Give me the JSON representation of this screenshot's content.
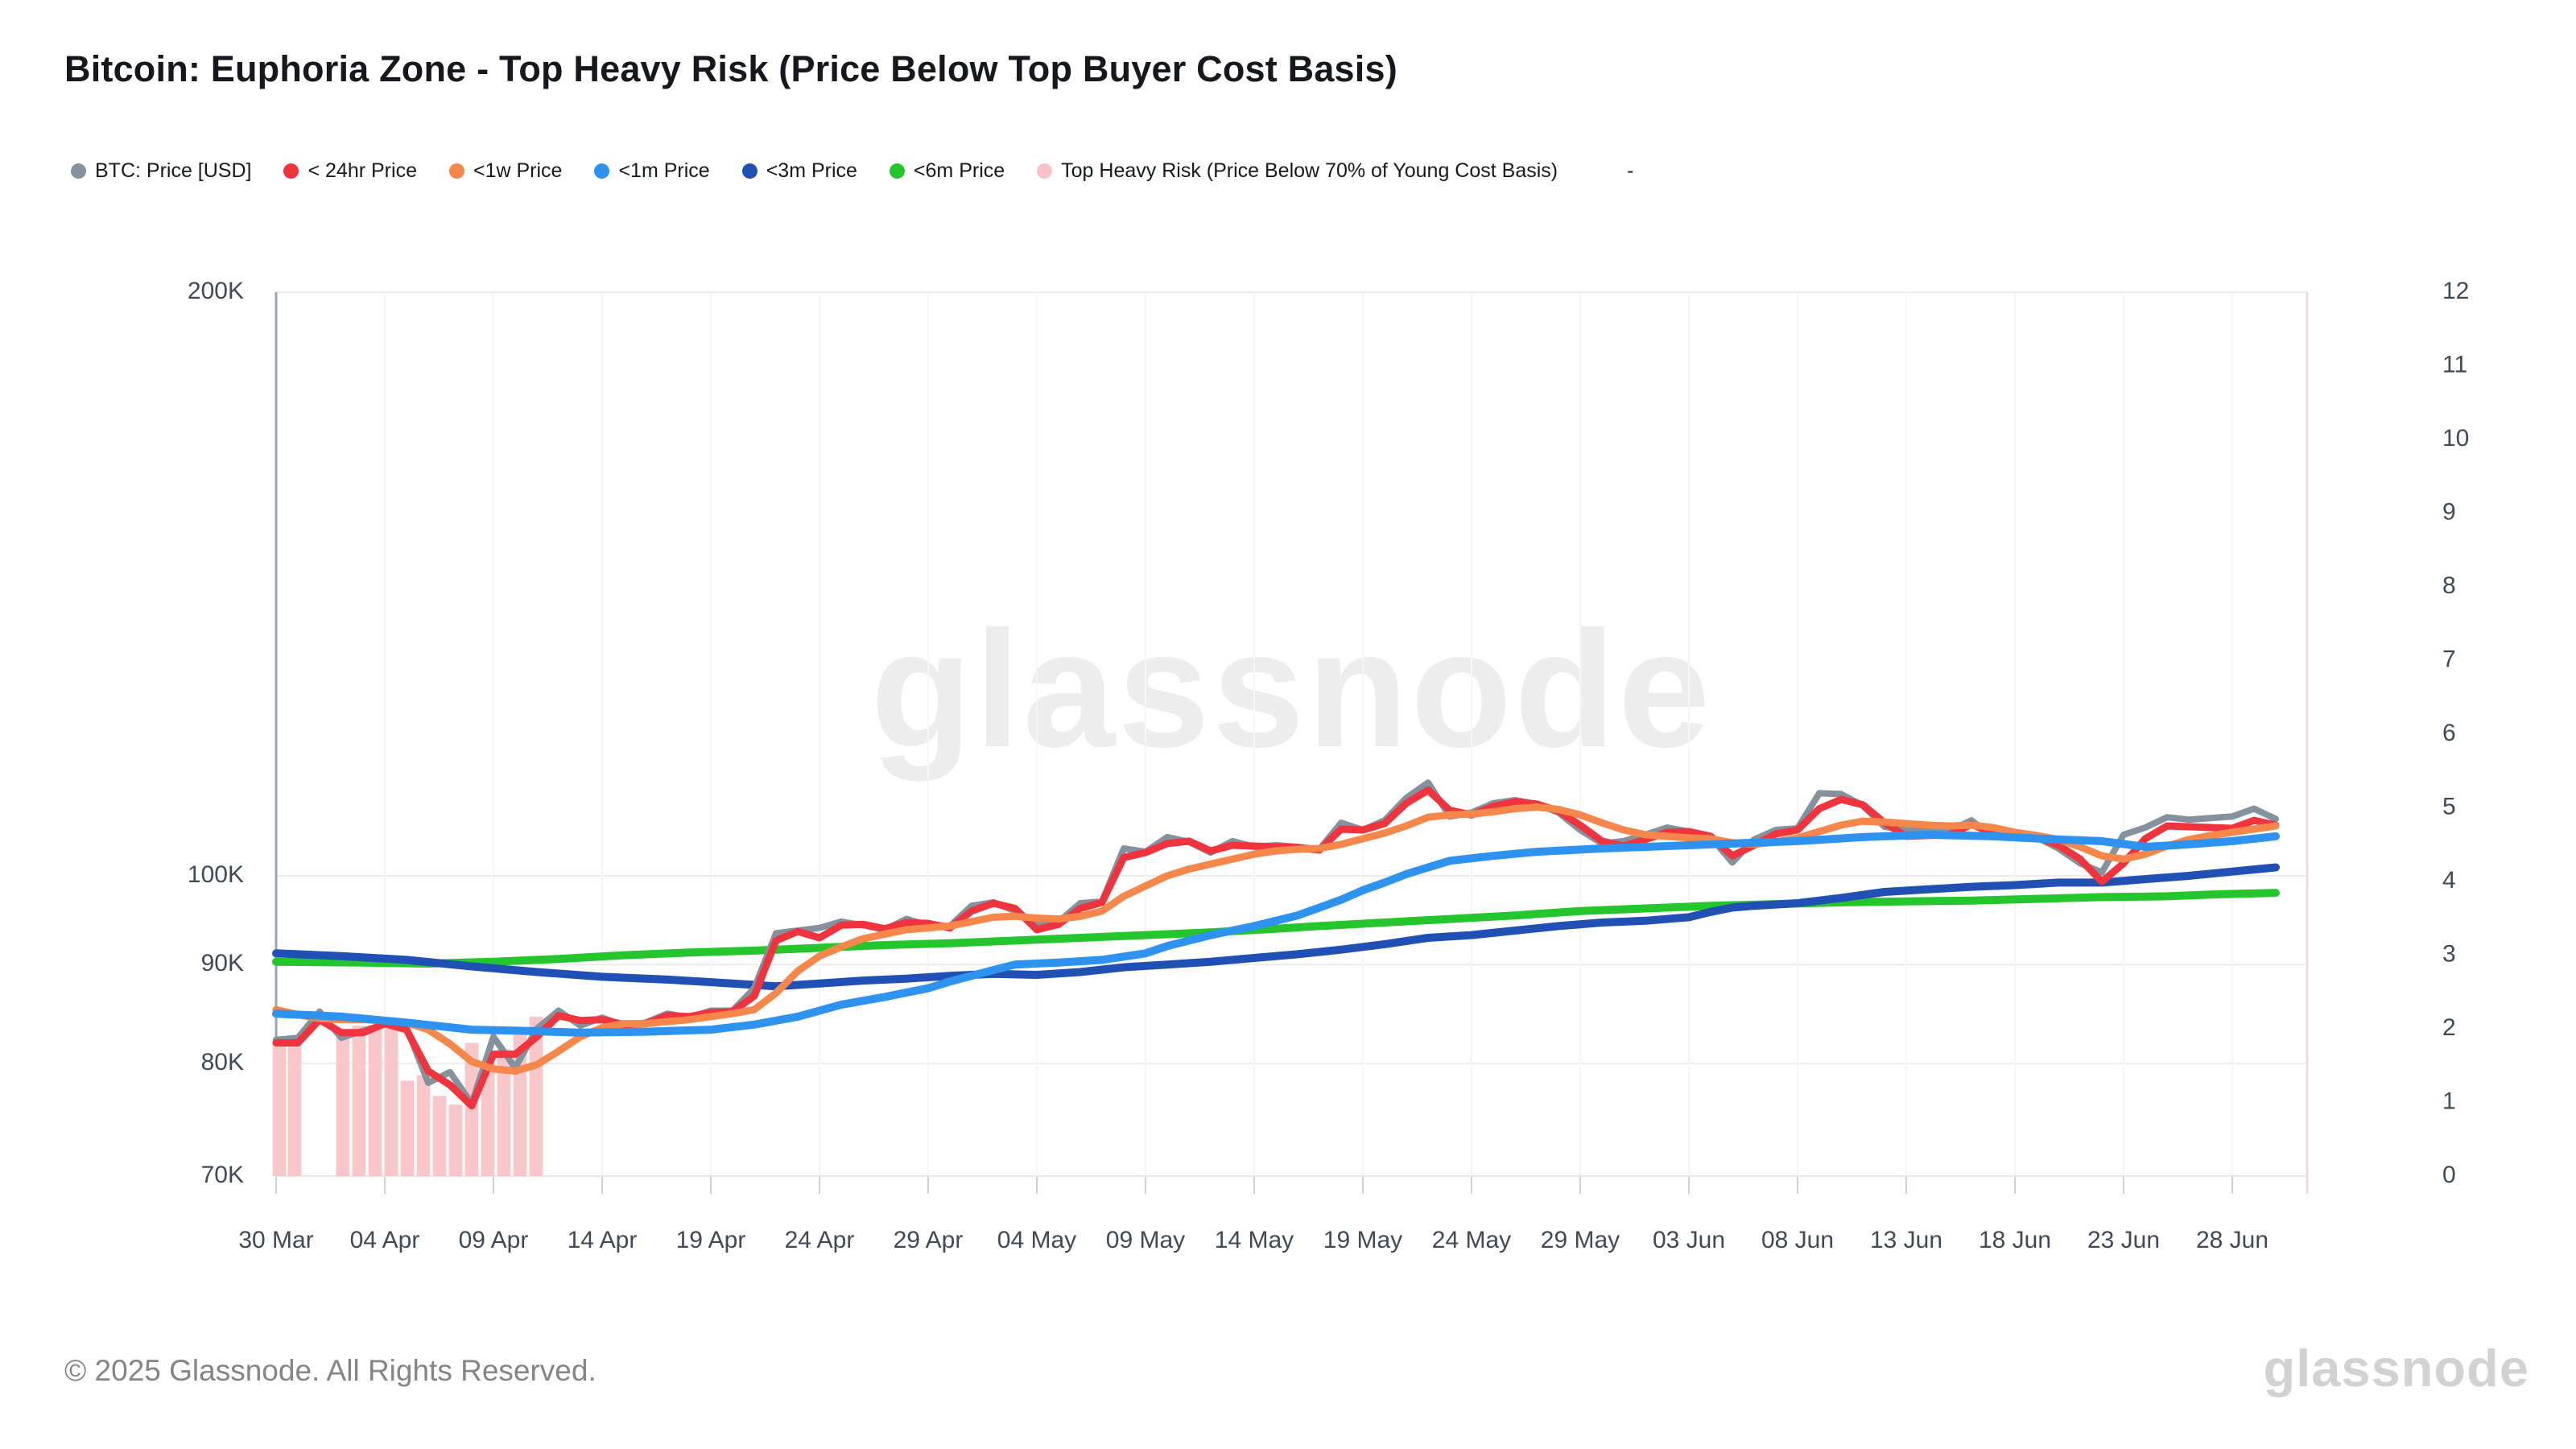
{
  "header": {
    "title": "Bitcoin: Euphoria Zone - Top Heavy Risk (Price Below Top Buyer Cost Basis)"
  },
  "watermark_text": "glassnode",
  "footer": {
    "copyright": "© 2025 Glassnode. All Rights Reserved.",
    "brand": "glassnode"
  },
  "legend": {
    "items": [
      {
        "id": "btc-price-usd",
        "label": "BTC: Price [USD]",
        "color": "#84929e"
      },
      {
        "id": "24hr-price",
        "label": "< 24hr Price",
        "color": "#ef343e"
      },
      {
        "id": "1w-price",
        "label": "<1w Price",
        "color": "#f6874a"
      },
      {
        "id": "1m-price",
        "label": "<1m Price",
        "color": "#2d93ee"
      },
      {
        "id": "3m-price",
        "label": "<3m Price",
        "color": "#2050b3"
      },
      {
        "id": "6m-price",
        "label": "<6m Price",
        "color": "#25c52e"
      },
      {
        "id": "top-heavy-risk",
        "label": "Top Heavy Risk (Price Below 70% of Young Cost Basis)",
        "color": "#f8c3c7"
      }
    ],
    "extra": "-"
  },
  "chart_data": {
    "type": "line",
    "title": "Bitcoin: Euphoria Zone - Top Heavy Risk (Price Below Top Buyer Cost Basis)",
    "x_unit": "days since 30 Mar 2025",
    "x_tick_days": [
      0,
      5,
      10,
      15,
      20,
      25,
      30,
      35,
      40,
      45,
      50,
      55,
      60,
      65,
      70,
      75,
      80,
      85,
      90
    ],
    "x_tick_labels": [
      "30 Mar",
      "04 Apr",
      "09 Apr",
      "14 Apr",
      "19 Apr",
      "24 Apr",
      "29 Apr",
      "04 May",
      "09 May",
      "14 May",
      "19 May",
      "24 May",
      "29 May",
      "03 Jun",
      "08 Jun",
      "13 Jun",
      "18 Jun",
      "23 Jun",
      "28 Jun"
    ],
    "y_left": {
      "scale": "log",
      "unit": "USD (thousands)",
      "domain": [
        70,
        200
      ],
      "ticks": [
        {
          "label": "200K",
          "value": 200
        },
        {
          "label": "100K",
          "value": 100
        },
        {
          "label": "90K",
          "value": 90
        },
        {
          "label": "80K",
          "value": 80
        },
        {
          "label": "70K",
          "value": 70
        }
      ]
    },
    "y_right": {
      "scale": "linear",
      "domain": [
        0,
        12
      ],
      "ticks": [
        {
          "label": "12",
          "value": 12
        },
        {
          "label": "11",
          "value": 11
        },
        {
          "label": "10",
          "value": 10
        },
        {
          "label": "9",
          "value": 9
        },
        {
          "label": "8",
          "value": 8
        },
        {
          "label": "7",
          "value": 7
        },
        {
          "label": "6",
          "value": 6
        },
        {
          "label": "5",
          "value": 5
        },
        {
          "label": "4",
          "value": 4
        },
        {
          "label": "3",
          "value": 3
        },
        {
          "label": "2",
          "value": 2
        },
        {
          "label": "1",
          "value": 1
        },
        {
          "label": "0",
          "value": 0
        }
      ]
    },
    "grid": {
      "horizontal": true,
      "vertical": true
    },
    "bars": {
      "name": "Top Heavy Risk (Price Below 70% of Young Cost Basis)",
      "color": "#f9c6c9",
      "width_days": 0.62,
      "note": "vertical bands from chart floor up to the BTC price level on flagged days",
      "points": [
        [
          0.15,
          82.3
        ],
        [
          0.85,
          82.4
        ],
        [
          3.07,
          83.2
        ],
        [
          3.81,
          83.7
        ],
        [
          4.56,
          83.6
        ],
        [
          5.3,
          83.4
        ],
        [
          6.04,
          78.4
        ],
        [
          6.78,
          78.9
        ],
        [
          7.52,
          77.0
        ],
        [
          8.26,
          76.2
        ],
        [
          9.0,
          82.0
        ],
        [
          9.74,
          80.2
        ],
        [
          10.48,
          81.4
        ],
        [
          11.22,
          83.4
        ],
        [
          11.96,
          84.6
        ]
      ]
    },
    "series": [
      {
        "name": "BTC: Price [USD]",
        "color": "#84929e",
        "width": 8,
        "z": 3,
        "start_day": 0,
        "step": 1,
        "values": [
          82.3,
          82.5,
          85.1,
          82.5,
          83.2,
          83.8,
          83.5,
          78.2,
          79.2,
          76.3,
          82.6,
          79.6,
          83.4,
          85.2,
          83.7,
          84.5,
          83.7,
          84.0,
          84.9,
          84.5,
          85.2,
          85.2,
          87.5,
          93.4,
          93.7,
          94.0,
          94.7,
          94.3,
          93.8,
          95.0,
          94.3,
          94.2,
          96.5,
          96.9,
          95.9,
          94.3,
          94.7,
          96.8,
          97.0,
          103.3,
          102.9,
          104.7,
          104.1,
          102.8,
          104.2,
          103.5,
          103.7,
          103.5,
          103.2,
          106.5,
          105.6,
          106.8,
          109.7,
          111.7,
          107.3,
          107.8,
          109.0,
          109.4,
          108.9,
          107.8,
          105.6,
          103.9,
          104.2,
          105.0,
          105.9,
          105.4,
          104.7,
          101.6,
          104.4,
          105.6,
          105.8,
          110.3,
          110.2,
          108.7,
          106.0,
          105.6,
          105.5,
          105.5,
          106.8,
          104.7,
          104.9,
          104.7,
          103.3,
          101.5,
          100.4,
          105.0,
          105.9,
          107.2,
          106.9,
          107.1,
          107.3,
          108.3,
          107.0
        ]
      },
      {
        "name": "< 24hr Price",
        "color": "#ef343e",
        "width": 9,
        "z": 4,
        "start_day": 0,
        "step": 1,
        "values": [
          82.0,
          82.0,
          84.3,
          83.0,
          83.0,
          83.9,
          83.3,
          79.3,
          78.0,
          76.1,
          80.9,
          80.9,
          82.6,
          84.7,
          84.2,
          84.3,
          83.8,
          83.9,
          84.7,
          84.6,
          85.0,
          85.1,
          86.7,
          92.6,
          93.6,
          92.9,
          94.3,
          94.4,
          93.9,
          94.6,
          94.5,
          94.0,
          95.9,
          96.8,
          96.2,
          93.8,
          94.4,
          96.2,
          96.9,
          102.2,
          102.8,
          103.9,
          104.2,
          103.0,
          103.7,
          103.6,
          103.5,
          103.4,
          103.1,
          105.7,
          105.6,
          106.4,
          109.0,
          110.7,
          108.1,
          107.5,
          108.6,
          109.2,
          108.9,
          108.0,
          106.2,
          104.2,
          103.6,
          104.4,
          105.3,
          105.4,
          104.8,
          102.4,
          103.7,
          105.1,
          105.6,
          108.3,
          109.5,
          108.8,
          106.5,
          104.8,
          104.9,
          105.0,
          106.3,
          105.2,
          104.8,
          104.7,
          103.7,
          102.0,
          99.3,
          101.5,
          104.5,
          106.1,
          106.0,
          105.9,
          105.8,
          106.8,
          106.2
        ]
      },
      {
        "name": "<1w Price",
        "color": "#f6874a",
        "width": 9,
        "z": 5,
        "start_day": 0,
        "step": 1,
        "values": [
          85.3,
          84.8,
          84.4,
          84.3,
          84.3,
          84.2,
          84.0,
          83.3,
          81.9,
          80.2,
          79.5,
          79.3,
          79.9,
          81.2,
          82.6,
          83.5,
          83.9,
          83.9,
          84.1,
          84.3,
          84.6,
          84.9,
          85.3,
          87.0,
          89.3,
          90.9,
          91.9,
          92.8,
          93.3,
          93.8,
          94.0,
          94.2,
          94.7,
          95.2,
          95.3,
          95.1,
          95.0,
          95.3,
          95.9,
          97.6,
          98.8,
          100.0,
          100.8,
          101.4,
          102.0,
          102.6,
          103.0,
          103.2,
          103.3,
          103.8,
          104.5,
          105.2,
          106.1,
          107.2,
          107.5,
          107.6,
          107.9,
          108.3,
          108.5,
          108.2,
          107.5,
          106.5,
          105.6,
          105.0,
          104.8,
          104.6,
          104.5,
          104.0,
          103.8,
          104.1,
          104.6,
          105.4,
          106.2,
          106.7,
          106.6,
          106.4,
          106.2,
          106.1,
          106.2,
          105.9,
          105.3,
          104.9,
          104.4,
          103.5,
          102.4,
          102.0,
          102.6,
          103.6,
          104.4,
          104.9,
          105.3,
          105.7,
          106.1
        ]
      },
      {
        "name": "<1m Price",
        "color": "#2d93ee",
        "width": 10,
        "z": 6,
        "points": [
          [
            0,
            84.9
          ],
          [
            3,
            84.6
          ],
          [
            6,
            84.0
          ],
          [
            9,
            83.3
          ],
          [
            11,
            83.2
          ],
          [
            14,
            83.0
          ],
          [
            17,
            83.1
          ],
          [
            20,
            83.3
          ],
          [
            22,
            83.8
          ],
          [
            24,
            84.6
          ],
          [
            26,
            85.8
          ],
          [
            28,
            86.6
          ],
          [
            30,
            87.5
          ],
          [
            31,
            88.2
          ],
          [
            32,
            88.8
          ],
          [
            33,
            89.4
          ],
          [
            34,
            90.0
          ],
          [
            36,
            90.2
          ],
          [
            38,
            90.5
          ],
          [
            40,
            91.2
          ],
          [
            41,
            92.0
          ],
          [
            43,
            93.2
          ],
          [
            45,
            94.2
          ],
          [
            47,
            95.4
          ],
          [
            49,
            97.2
          ],
          [
            50,
            98.3
          ],
          [
            51,
            99.2
          ],
          [
            52,
            100.2
          ],
          [
            53,
            101.0
          ],
          [
            54,
            101.8
          ],
          [
            56,
            102.4
          ],
          [
            58,
            102.9
          ],
          [
            61,
            103.3
          ],
          [
            64,
            103.6
          ],
          [
            67,
            103.9
          ],
          [
            70,
            104.2
          ],
          [
            73,
            104.7
          ],
          [
            76,
            105.0
          ],
          [
            79,
            104.8
          ],
          [
            82,
            104.4
          ],
          [
            84,
            104.2
          ],
          [
            86,
            103.5
          ],
          [
            88,
            103.8
          ],
          [
            90,
            104.2
          ],
          [
            92,
            104.8
          ]
        ]
      },
      {
        "name": "<3m Price",
        "color": "#2050b3",
        "width": 10,
        "z": 2,
        "points": [
          [
            0,
            91.2
          ],
          [
            3,
            90.9
          ],
          [
            6,
            90.5
          ],
          [
            9,
            89.8
          ],
          [
            12,
            89.2
          ],
          [
            15,
            88.7
          ],
          [
            18,
            88.4
          ],
          [
            21,
            88.0
          ],
          [
            23,
            87.7
          ],
          [
            25,
            88.0
          ],
          [
            27,
            88.3
          ],
          [
            29,
            88.5
          ],
          [
            31,
            88.8
          ],
          [
            33,
            89.0
          ],
          [
            35,
            88.9
          ],
          [
            37,
            89.2
          ],
          [
            39,
            89.7
          ],
          [
            41,
            90.0
          ],
          [
            43,
            90.3
          ],
          [
            45,
            90.7
          ],
          [
            47,
            91.1
          ],
          [
            49,
            91.6
          ],
          [
            51,
            92.2
          ],
          [
            53,
            92.9
          ],
          [
            55,
            93.2
          ],
          [
            57,
            93.7
          ],
          [
            59,
            94.2
          ],
          [
            61,
            94.6
          ],
          [
            63,
            94.8
          ],
          [
            65,
            95.2
          ],
          [
            66,
            95.8
          ],
          [
            67,
            96.3
          ],
          [
            68,
            96.5
          ],
          [
            70,
            96.8
          ],
          [
            72,
            97.4
          ],
          [
            74,
            98.1
          ],
          [
            76,
            98.4
          ],
          [
            78,
            98.7
          ],
          [
            80,
            98.9
          ],
          [
            82,
            99.2
          ],
          [
            84,
            99.2
          ],
          [
            86,
            99.6
          ],
          [
            88,
            100.0
          ],
          [
            90,
            100.5
          ],
          [
            92,
            101.0
          ]
        ]
      },
      {
        "name": "<6m Price",
        "color": "#25c52e",
        "width": 10,
        "z": 1,
        "points": [
          [
            0,
            90.3
          ],
          [
            4,
            90.2
          ],
          [
            7,
            90.1
          ],
          [
            10,
            90.3
          ],
          [
            13,
            90.6
          ],
          [
            16,
            91.0
          ],
          [
            19,
            91.3
          ],
          [
            22,
            91.5
          ],
          [
            25,
            91.8
          ],
          [
            28,
            92.1
          ],
          [
            31,
            92.3
          ],
          [
            34,
            92.6
          ],
          [
            37,
            92.9
          ],
          [
            40,
            93.2
          ],
          [
            43,
            93.5
          ],
          [
            46,
            93.9
          ],
          [
            48,
            94.2
          ],
          [
            51,
            94.6
          ],
          [
            54,
            95.0
          ],
          [
            57,
            95.4
          ],
          [
            60,
            95.9
          ],
          [
            63,
            96.2
          ],
          [
            66,
            96.5
          ],
          [
            69,
            96.7
          ],
          [
            72,
            96.9
          ],
          [
            75,
            97.0
          ],
          [
            78,
            97.1
          ],
          [
            81,
            97.3
          ],
          [
            84,
            97.5
          ],
          [
            87,
            97.6
          ],
          [
            89,
            97.8
          ],
          [
            92,
            98.0
          ]
        ]
      }
    ]
  },
  "style": {
    "grid_color": "#ececec",
    "vgrid_color": "#f6f6f6",
    "left_axis_color": "#9ba6b0",
    "right_border_color": "#eedcda",
    "baseline_color": "#e7e7e7",
    "tick_color": "#ccd2d6",
    "axis_text_color": "#3f4a57"
  }
}
